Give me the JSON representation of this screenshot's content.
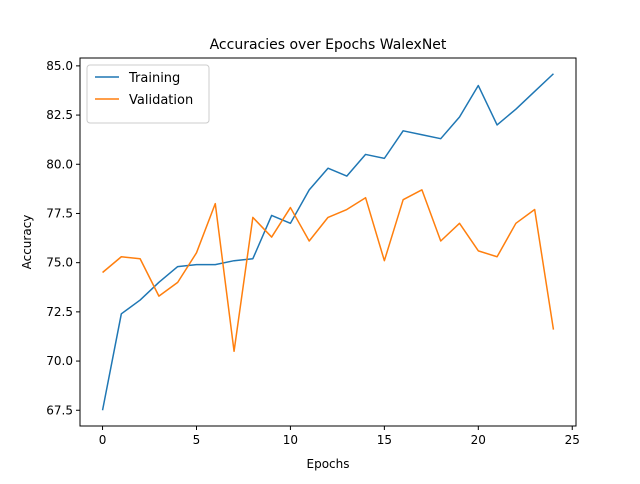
{
  "chart_data": {
    "type": "line",
    "title": "Accuracies over Epochs WalexNet",
    "xlabel": "Epochs",
    "ylabel": "Accuracy",
    "xlim": [
      -1.2,
      25.2
    ],
    "ylim": [
      66.7,
      85.4
    ],
    "xticks": [
      0,
      5,
      10,
      15,
      20,
      25
    ],
    "xtick_labels": [
      "0",
      "5",
      "10",
      "15",
      "20",
      "25"
    ],
    "yticks": [
      67.5,
      70.0,
      72.5,
      75.0,
      77.5,
      80.0,
      82.5,
      85.0
    ],
    "ytick_labels": [
      "67.5",
      "70.0",
      "72.5",
      "75.0",
      "77.5",
      "80.0",
      "82.5",
      "85.0"
    ],
    "grid": false,
    "legend_position": "upper-left",
    "x": [
      0,
      1,
      2,
      3,
      4,
      5,
      6,
      7,
      8,
      9,
      10,
      11,
      12,
      13,
      14,
      15,
      16,
      17,
      18,
      19,
      20,
      21,
      22,
      23,
      24
    ],
    "series": [
      {
        "name": "Training",
        "color": "#1f77b4",
        "values": [
          67.5,
          72.4,
          73.1,
          74.0,
          74.8,
          74.9,
          74.9,
          75.1,
          75.2,
          77.4,
          77.0,
          78.7,
          79.8,
          79.4,
          80.5,
          80.3,
          81.7,
          81.5,
          81.3,
          82.4,
          84.0,
          82.0,
          82.8,
          83.7,
          84.6
        ]
      },
      {
        "name": "Validation",
        "color": "#ff7f0e",
        "values": [
          74.5,
          75.3,
          75.2,
          73.3,
          74.0,
          75.5,
          78.0,
          70.5,
          77.3,
          76.3,
          77.8,
          76.1,
          77.3,
          77.7,
          78.3,
          75.1,
          78.2,
          78.7,
          76.1,
          77.0,
          75.6,
          75.3,
          77.0,
          77.7,
          71.6
        ]
      }
    ]
  }
}
